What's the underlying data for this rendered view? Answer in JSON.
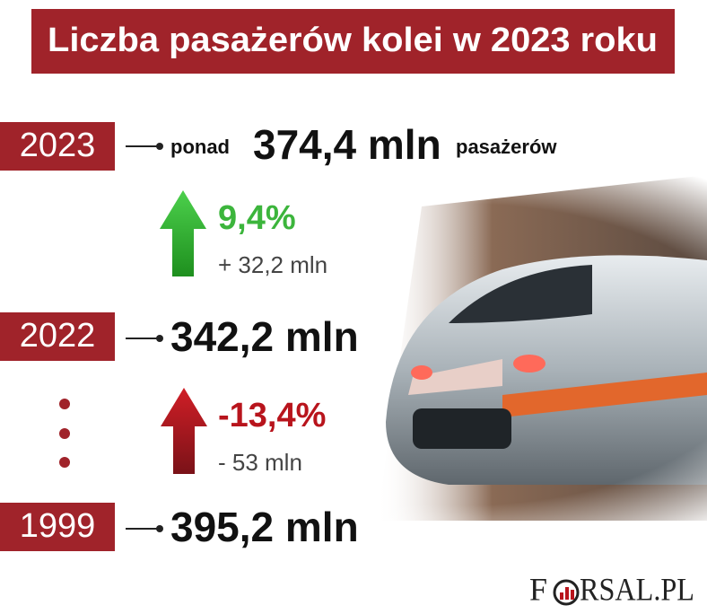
{
  "header": {
    "title": "Liczba pasażerów kolei w 2023 roku"
  },
  "rows": [
    {
      "year": "2023",
      "prefix": "ponad",
      "value": "374,4 mln",
      "suffix": "pasażerów"
    },
    {
      "year": "2022",
      "value": "342,2 mln"
    },
    {
      "year": "1999",
      "value": "395,2 mln"
    }
  ],
  "changes": [
    {
      "percent": "9,4%",
      "amount": "+ 32,2 mln"
    },
    {
      "percent": "-13,4%",
      "amount": "- 53 mln"
    }
  ],
  "logo": {
    "start": "F",
    "end": "RSAL.PL"
  }
}
